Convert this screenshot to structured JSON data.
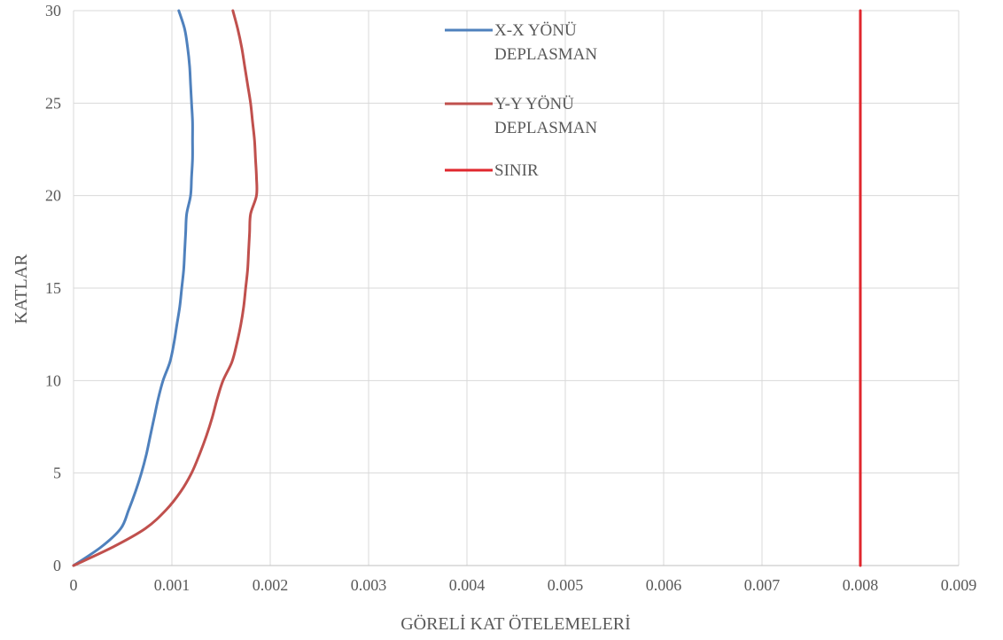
{
  "chart_data": {
    "type": "line",
    "xlabel": "GÖRELİ KAT ÖTELEMELERİ",
    "ylabel": "KATLAR",
    "xlim": [
      0,
      0.009
    ],
    "ylim": [
      0,
      30
    ],
    "x_ticks": [
      "0",
      "0.001",
      "0.002",
      "0.003",
      "0.004",
      "0.005",
      "0.006",
      "0.007",
      "0.008",
      "0.009"
    ],
    "y_ticks": [
      "0",
      "5",
      "10",
      "15",
      "20",
      "25",
      "30"
    ],
    "grid": true,
    "legend_position": "top-center",
    "series": [
      {
        "name": "X-X YÖNÜ DEPLASMAN",
        "name_lines": [
          "X-X YÖNÜ",
          "DEPLASMAN"
        ],
        "color": "#4f81bd",
        "points": [
          [
            0,
            0
          ],
          [
            0.00028,
            1
          ],
          [
            0.00048,
            2
          ],
          [
            0.00056,
            3
          ],
          [
            0.00063,
            4
          ],
          [
            0.00069,
            5
          ],
          [
            0.00074,
            6
          ],
          [
            0.00078,
            7
          ],
          [
            0.00082,
            8
          ],
          [
            0.00086,
            9
          ],
          [
            0.00091,
            10
          ],
          [
            0.00098,
            11
          ],
          [
            0.00102,
            12
          ],
          [
            0.00105,
            13
          ],
          [
            0.00108,
            14
          ],
          [
            0.0011,
            15
          ],
          [
            0.00112,
            16
          ],
          [
            0.00113,
            17
          ],
          [
            0.00114,
            18
          ],
          [
            0.00115,
            19
          ],
          [
            0.00119,
            20
          ],
          [
            0.0012,
            21
          ],
          [
            0.00121,
            22
          ],
          [
            0.00121,
            23
          ],
          [
            0.00121,
            24
          ],
          [
            0.0012,
            25
          ],
          [
            0.00119,
            26
          ],
          [
            0.00118,
            27
          ],
          [
            0.00116,
            28
          ],
          [
            0.00113,
            29
          ],
          [
            0.00107,
            30
          ]
        ]
      },
      {
        "name": "Y-Y YÖNÜ DEPLASMAN",
        "name_lines": [
          "Y-Y YÖNÜ",
          "DEPLASMAN"
        ],
        "color": "#c0504d",
        "points": [
          [
            0,
            0
          ],
          [
            0.0004,
            1
          ],
          [
            0.00073,
            2
          ],
          [
            0.00094,
            3
          ],
          [
            0.00109,
            4
          ],
          [
            0.0012,
            5
          ],
          [
            0.00128,
            6
          ],
          [
            0.00135,
            7
          ],
          [
            0.00141,
            8
          ],
          [
            0.00146,
            9
          ],
          [
            0.00152,
            10
          ],
          [
            0.00161,
            11
          ],
          [
            0.00166,
            12
          ],
          [
            0.0017,
            13
          ],
          [
            0.00173,
            14
          ],
          [
            0.00175,
            15
          ],
          [
            0.00177,
            16
          ],
          [
            0.00178,
            17
          ],
          [
            0.00179,
            18
          ],
          [
            0.0018,
            19
          ],
          [
            0.00186,
            20
          ],
          [
            0.00186,
            21
          ],
          [
            0.00185,
            22
          ],
          [
            0.00184,
            23
          ],
          [
            0.00182,
            24
          ],
          [
            0.0018,
            25
          ],
          [
            0.00177,
            26
          ],
          [
            0.00174,
            27
          ],
          [
            0.00171,
            28
          ],
          [
            0.00167,
            29
          ],
          [
            0.00162,
            30
          ]
        ]
      },
      {
        "name": "SINIR",
        "name_lines": [
          "SINIR"
        ],
        "color": "#e0272e",
        "points": [
          [
            0.008,
            0
          ],
          [
            0.008,
            30
          ]
        ]
      }
    ]
  }
}
